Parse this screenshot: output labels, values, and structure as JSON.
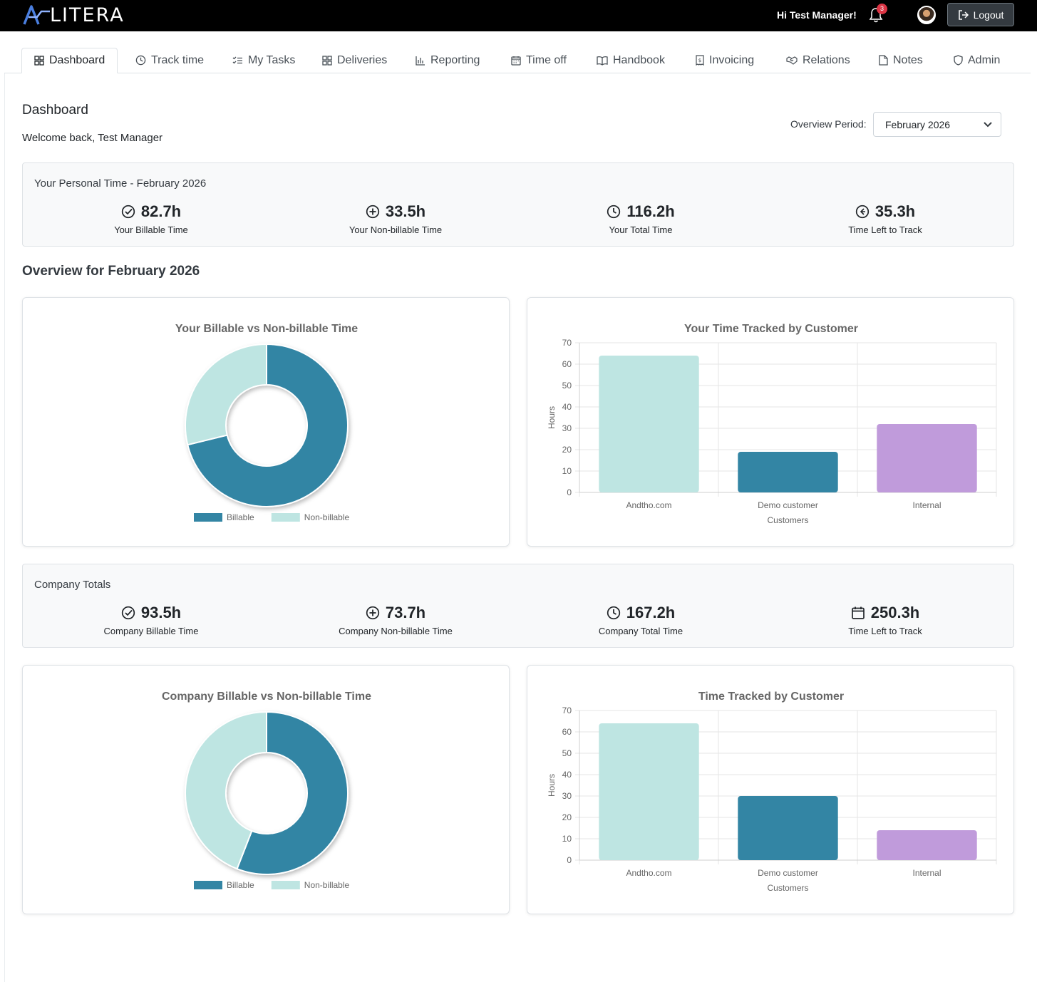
{
  "brand": {
    "name": "LITERA"
  },
  "header": {
    "greeting": "Hi Test Manager!",
    "notification_count": "3",
    "logout_label": "Logout"
  },
  "tabs": [
    {
      "label": "Dashboard",
      "icon": "grid-icon"
    },
    {
      "label": "Track time",
      "icon": "clock-icon"
    },
    {
      "label": "My Tasks",
      "icon": "checklist-icon"
    },
    {
      "label": "Deliveries",
      "icon": "grid-icon"
    },
    {
      "label": "Reporting",
      "icon": "bar-chart-icon"
    },
    {
      "label": "Time off",
      "icon": "calendar-icon"
    },
    {
      "label": "Handbook",
      "icon": "book-icon"
    },
    {
      "label": "Invoicing",
      "icon": "receipt-icon"
    },
    {
      "label": "Relations",
      "icon": "handshake-icon"
    },
    {
      "label": "Notes",
      "icon": "note-icon"
    },
    {
      "label": "Admin",
      "icon": "shield-icon"
    }
  ],
  "page": {
    "title": "Dashboard",
    "welcome": "Welcome back, Test Manager",
    "period_label": "Overview Period:",
    "period_value": "February 2026",
    "overview_title": "Overview for February 2026"
  },
  "personal": {
    "title": "Your Personal Time - February 2026",
    "stats": [
      {
        "value": "82.7h",
        "label": "Your Billable Time",
        "icon": "check-circle-icon"
      },
      {
        "value": "33.5h",
        "label": "Your Non-billable Time",
        "icon": "plus-circle-icon"
      },
      {
        "value": "116.2h",
        "label": "Your Total Time",
        "icon": "clock-icon"
      },
      {
        "value": "35.3h",
        "label": "Time Left to Track",
        "icon": "arrow-left-circle-icon"
      }
    ]
  },
  "company": {
    "title": "Company Totals",
    "stats": [
      {
        "value": "93.5h",
        "label": "Company Billable Time",
        "icon": "check-circle-icon"
      },
      {
        "value": "73.7h",
        "label": "Company Non-billable Time",
        "icon": "plus-circle-icon"
      },
      {
        "value": "167.2h",
        "label": "Company Total Time",
        "icon": "clock-icon"
      },
      {
        "value": "250.3h",
        "label": "Time Left to Track",
        "icon": "calendar-icon"
      }
    ]
  },
  "colors": {
    "billable": "#3385a4",
    "non_billable": "#bee5e2",
    "internal": "#c09bdb"
  },
  "chart_data": [
    {
      "type": "pie",
      "title": "Your Billable vs Non-billable Time",
      "categories": [
        "Billable",
        "Non-billable"
      ],
      "values": [
        82.7,
        33.5
      ],
      "colors": [
        "#3385a4",
        "#bee5e2"
      ],
      "legend": "bottom"
    },
    {
      "type": "bar",
      "title": "Your Time Tracked by Customer",
      "categories": [
        "Andtho.com",
        "Demo customer",
        "Internal"
      ],
      "values": [
        64,
        19,
        32
      ],
      "colors": [
        "#bee5e2",
        "#3385a4",
        "#c09bdb"
      ],
      "xlabel": "Customers",
      "ylabel": "Hours",
      "ylim": [
        0,
        70
      ],
      "yticks": [
        0,
        10,
        20,
        30,
        40,
        50,
        60,
        70
      ],
      "grid": true
    },
    {
      "type": "pie",
      "title": "Company Billable vs Non-billable Time",
      "categories": [
        "Billable",
        "Non-billable"
      ],
      "values": [
        93.5,
        73.7
      ],
      "colors": [
        "#3385a4",
        "#bee5e2"
      ],
      "legend": "bottom"
    },
    {
      "type": "bar",
      "title": "Time Tracked by Customer",
      "categories": [
        "Andtho.com",
        "Demo customer",
        "Internal"
      ],
      "values": [
        64,
        30,
        14
      ],
      "colors": [
        "#bee5e2",
        "#3385a4",
        "#c09bdb"
      ],
      "xlabel": "Customers",
      "ylabel": "Hours",
      "ylim": [
        0,
        70
      ],
      "yticks": [
        0,
        10,
        20,
        30,
        40,
        50,
        60,
        70
      ],
      "grid": true
    }
  ]
}
